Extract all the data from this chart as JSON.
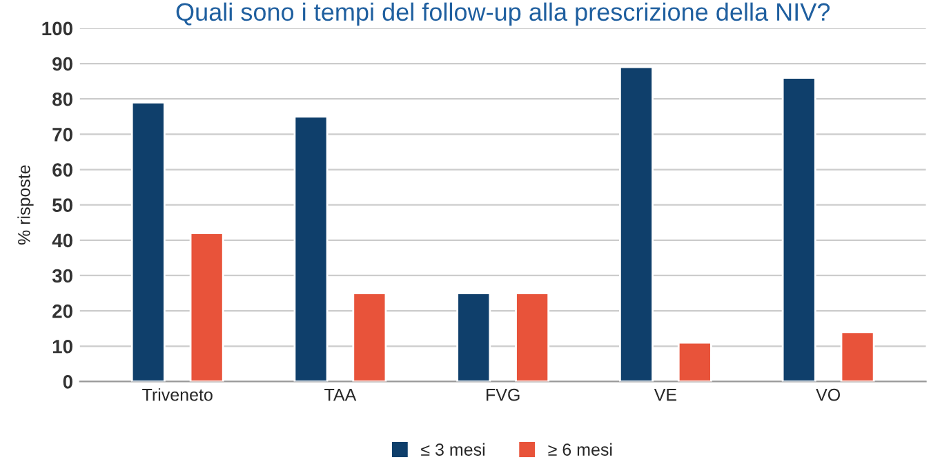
{
  "chart_data": {
    "type": "bar",
    "title": "Quali sono i tempi del follow-up alla prescrizione della NIV?",
    "ylabel": "% risposte",
    "categories": [
      "Triveneto",
      "TAA",
      "FVG",
      "VE",
      "VO"
    ],
    "series": [
      {
        "name": "≤ 3 mesi",
        "color": "#0f3f6b",
        "values": [
          79,
          75,
          25,
          89,
          86
        ]
      },
      {
        "name": "≥ 6 mesi",
        "color": "#e8533a",
        "values": [
          42,
          25,
          25,
          11,
          14
        ]
      }
    ],
    "ylim": [
      0,
      100
    ],
    "yticks": [
      0,
      10,
      20,
      30,
      40,
      50,
      60,
      70,
      80,
      90,
      100
    ],
    "grid": "y",
    "legend": "bottom"
  }
}
